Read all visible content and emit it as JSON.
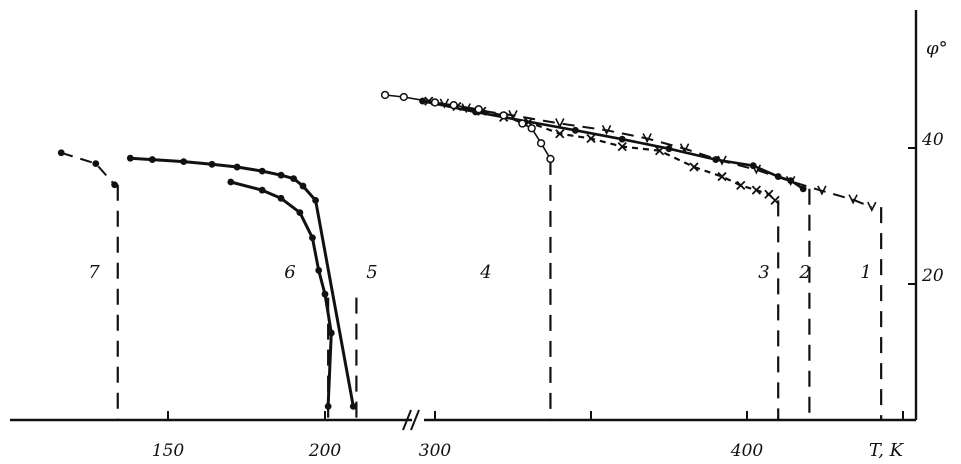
{
  "chart_data": {
    "type": "line",
    "title": "",
    "xlabel": "T, K",
    "ylabel": "φ°",
    "x_axis": {
      "broken": true,
      "segments": [
        {
          "range": [
            116,
            212
          ],
          "ticks": [
            150,
            200
          ]
        },
        {
          "range": [
            280,
            465
          ],
          "ticks": [
            300,
            350,
            400,
            450
          ]
        }
      ],
      "tick_labels": [
        "150",
        "200",
        "300",
        "400"
      ],
      "end_label": "T, K"
    },
    "y_axis": {
      "range": [
        0,
        48
      ],
      "ticks": [
        20,
        40
      ],
      "tick_labels": [
        "20",
        "40"
      ],
      "position": "right",
      "label": "φ°"
    },
    "grid": false,
    "curves": [
      {
        "label": "1",
        "marker": "v",
        "transition_temperature": 443,
        "points": [
          [
            303,
            46.5
          ],
          [
            310,
            45.8
          ],
          [
            325,
            44.8
          ],
          [
            340,
            43.6
          ],
          [
            355,
            42.6
          ],
          [
            368,
            41.4
          ],
          [
            380,
            39.9
          ],
          [
            392,
            38.1
          ],
          [
            403,
            36.8
          ],
          [
            414,
            35.1
          ],
          [
            424,
            33.7
          ],
          [
            434,
            32.4
          ],
          [
            440,
            31.3
          ]
        ]
      },
      {
        "label": "2",
        "marker": "filled-circle",
        "transition_temperature": 420,
        "points": [
          [
            296,
            46.9
          ],
          [
            313,
            45.3
          ],
          [
            345,
            42.6
          ],
          [
            360,
            41.3
          ],
          [
            375,
            39.9
          ],
          [
            390,
            38.3
          ],
          [
            402,
            37.4
          ],
          [
            410,
            35.8
          ],
          [
            414,
            35.2
          ],
          [
            418,
            34.0
          ]
        ]
      },
      {
        "label": "3",
        "marker": "x",
        "transition_temperature": 410,
        "points": [
          [
            298,
            46.9
          ],
          [
            307,
            46.1
          ],
          [
            315,
            45.4
          ],
          [
            322,
            44.5
          ],
          [
            330,
            43.8
          ],
          [
            340,
            42.1
          ],
          [
            350,
            41.4
          ],
          [
            360,
            40.2
          ],
          [
            372,
            39.6
          ],
          [
            383,
            37.2
          ],
          [
            392,
            35.8
          ],
          [
            398,
            34.5
          ],
          [
            403,
            33.8
          ],
          [
            407,
            33.2
          ],
          [
            409,
            32.3
          ]
        ]
      },
      {
        "label": "4",
        "marker": "open-circle",
        "transition_temperature": 337,
        "points": [
          [
            284,
            47.8
          ],
          [
            290,
            47.5
          ],
          [
            300,
            46.7
          ],
          [
            306,
            46.3
          ],
          [
            314,
            45.7
          ],
          [
            322,
            44.8
          ],
          [
            328,
            43.6
          ],
          [
            331,
            42.9
          ],
          [
            334,
            40.7
          ],
          [
            337,
            38.4
          ]
        ]
      },
      {
        "label": "5",
        "marker": "filled-circle",
        "transition_temperature": 210,
        "points": [
          [
            138,
            38.5
          ],
          [
            145,
            38.3
          ],
          [
            155,
            38.0
          ],
          [
            164,
            37.6
          ],
          [
            172,
            37.2
          ],
          [
            180,
            36.6
          ],
          [
            186,
            36.0
          ],
          [
            190,
            35.5
          ],
          [
            193,
            34.4
          ],
          [
            197,
            32.3
          ],
          [
            209,
            2.0
          ]
        ]
      },
      {
        "label": "6",
        "marker": "filled-circle",
        "transition_temperature": 201,
        "points": [
          [
            170,
            35.0
          ],
          [
            180,
            33.8
          ],
          [
            186,
            32.6
          ],
          [
            192,
            30.5
          ],
          [
            196,
            26.8
          ],
          [
            198,
            22.0
          ],
          [
            200,
            18.5
          ],
          [
            202,
            12.8
          ],
          [
            201,
            2.0
          ]
        ]
      },
      {
        "label": "7",
        "marker": "filled-circle",
        "transition_temperature": 134,
        "points": [
          [
            116,
            39.3
          ],
          [
            127,
            37.7
          ],
          [
            133,
            34.6
          ]
        ]
      }
    ]
  }
}
